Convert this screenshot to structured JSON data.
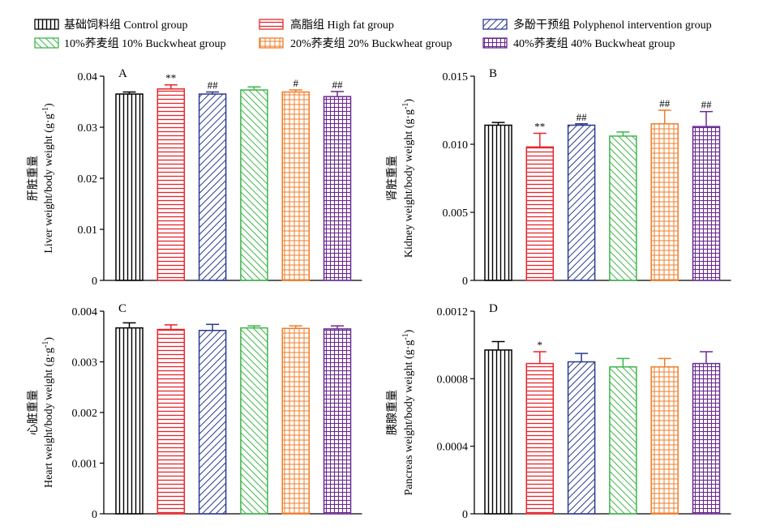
{
  "legend": [
    {
      "label": "基础饲料组 Control group",
      "color": "#000000",
      "pattern": "vertical"
    },
    {
      "label": "高脂组 High fat group",
      "color": "#e8252b",
      "pattern": "horizontal"
    },
    {
      "label": "多酚干预组 Polyphenol intervention group",
      "color": "#2b3990",
      "pattern": "diag-right"
    },
    {
      "label": "10%荞麦组 10% Buckwheat group",
      "color": "#3db54a",
      "pattern": "diag-left"
    },
    {
      "label": "20%荞麦组 20% Buckwheat group",
      "color": "#f07c28",
      "pattern": "grid"
    },
    {
      "label": "40%荞麦组 40% Buckwheat group",
      "color": "#6a2c91",
      "pattern": "grid"
    }
  ],
  "chart_data": [
    {
      "type": "bar",
      "panel_label": "A",
      "ylabel_cn": "肝脏重量",
      "ylabel_en": "Liver weight/body weight (g·g",
      "ylabel_sup": "-1",
      "ylabel_end": ")",
      "ylim": [
        0,
        0.04
      ],
      "yticks": [
        0,
        0.01,
        0.02,
        0.03,
        0.04
      ],
      "ytick_labels": [
        "0",
        "0.01",
        "0.02",
        "0.03",
        "0.04"
      ],
      "values": [
        0.0365,
        0.0375,
        0.0365,
        0.0373,
        0.0369,
        0.036
      ],
      "errors": [
        0.0004,
        0.0008,
        0.0004,
        0.0006,
        0.0004,
        0.001
      ],
      "annotations": [
        "",
        "**",
        "##",
        "",
        "#",
        "##"
      ]
    },
    {
      "type": "bar",
      "panel_label": "B",
      "ylabel_cn": "肾脏重量",
      "ylabel_en": "Kidney weight/body weight (g·g",
      "ylabel_sup": "-1",
      "ylabel_end": ")",
      "ylim": [
        0,
        0.015
      ],
      "yticks": [
        0,
        0.005,
        0.01,
        0.015
      ],
      "ytick_labels": [
        "0",
        "0.005",
        "0.010",
        "0.015"
      ],
      "values": [
        0.0114,
        0.0098,
        0.0114,
        0.0106,
        0.0115,
        0.0113
      ],
      "errors": [
        0.0002,
        0.001,
        0.0001,
        0.0003,
        0.001,
        0.0011
      ],
      "annotations": [
        "",
        "**",
        "##",
        "",
        "##",
        "##"
      ]
    },
    {
      "type": "bar",
      "panel_label": "C",
      "ylabel_cn": "心脏重量",
      "ylabel_en": "Heart weight/body weight (g·g",
      "ylabel_sup": "-1",
      "ylabel_end": ")",
      "ylim": [
        0,
        0.004
      ],
      "yticks": [
        0,
        0.001,
        0.002,
        0.003,
        0.004
      ],
      "ytick_labels": [
        "0",
        "0.001",
        "0.002",
        "0.003",
        "0.004"
      ],
      "values": [
        0.00367,
        0.00364,
        0.00362,
        0.00367,
        0.00366,
        0.00365
      ],
      "errors": [
        0.0001,
        9e-05,
        0.00012,
        4e-05,
        5e-05,
        6e-05
      ],
      "annotations": [
        "",
        "",
        "",
        "",
        "",
        ""
      ]
    },
    {
      "type": "bar",
      "panel_label": "D",
      "ylabel_cn": "胰腺重量",
      "ylabel_en": "Pancreas weight/body weight (g·g",
      "ylabel_sup": "-1",
      "ylabel_end": ")",
      "ylim": [
        0,
        0.0012
      ],
      "yticks": [
        0,
        0.0004,
        0.0008,
        0.0012
      ],
      "ytick_labels": [
        "0",
        "0.0004",
        "0.0008",
        "0.0012"
      ],
      "values": [
        0.00097,
        0.00089,
        0.0009,
        0.00087,
        0.00087,
        0.00089
      ],
      "errors": [
        5e-05,
        7e-05,
        5e-05,
        5e-05,
        5e-05,
        7e-05
      ],
      "annotations": [
        "",
        "*",
        "",
        "",
        "",
        ""
      ]
    }
  ]
}
